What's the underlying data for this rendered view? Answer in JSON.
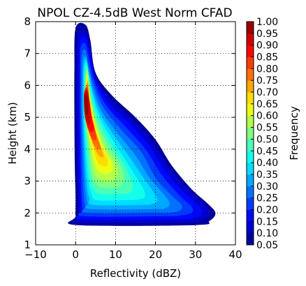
{
  "chart_data": {
    "type": "heatmap",
    "title": "NPOL CZ-4.5dB West Norm CFAD",
    "xlabel": "Reflectivity (dBZ)",
    "ylabel": "Height (km)",
    "xlim": [
      -10,
      40
    ],
    "ylim": [
      1,
      8
    ],
    "xticks": [
      -10,
      0,
      10,
      20,
      30,
      40
    ],
    "yticks": [
      1,
      2,
      3,
      4,
      5,
      6,
      7,
      8
    ],
    "grid": true,
    "colorbar": {
      "label": "Frequency",
      "min": 0.05,
      "max": 1.0,
      "ticks": [
        "0.05",
        "0.10",
        "0.15",
        "0.20",
        "0.25",
        "0.30",
        "0.35",
        "0.40",
        "0.45",
        "0.50",
        "0.55",
        "0.60",
        "0.65",
        "0.70",
        "0.75",
        "0.80",
        "0.85",
        "0.90",
        "0.95",
        "1.00"
      ],
      "colormap": "jet"
    },
    "contour_envelopes": [
      {
        "level": 0.05,
        "left": [
          [
            0,
            7.8
          ],
          [
            -0.3,
            6.5
          ],
          [
            -0.3,
            5
          ],
          [
            -0.2,
            3.5
          ],
          [
            0,
            2.5
          ],
          [
            0,
            1.9
          ],
          [
            0.4,
            1.62
          ]
        ],
        "right": [
          [
            2.5,
            7.9
          ],
          [
            3.7,
            7.4
          ],
          [
            5,
            6.4
          ],
          [
            9,
            5.7
          ],
          [
            15,
            5
          ],
          [
            20,
            4.3
          ],
          [
            24,
            3.5
          ],
          [
            29,
            2.75
          ],
          [
            33,
            2.3
          ],
          [
            35,
            2.0
          ],
          [
            33.5,
            1.75
          ],
          [
            30,
            1.62
          ]
        ]
      },
      {
        "level": 0.1,
        "left": [
          [
            0.6,
            7.6
          ],
          [
            0.3,
            6.5
          ],
          [
            0.3,
            5
          ],
          [
            0.4,
            3.5
          ],
          [
            0.6,
            2.5
          ],
          [
            0.8,
            1.9
          ],
          [
            1.2,
            1.7
          ]
        ],
        "right": [
          [
            2.5,
            7.7
          ],
          [
            3.6,
            7.2
          ],
          [
            5,
            6.3
          ],
          [
            8.5,
            5.6
          ],
          [
            14.5,
            4.9
          ],
          [
            19.5,
            4.2
          ],
          [
            23.5,
            3.4
          ],
          [
            28.5,
            2.7
          ],
          [
            32.5,
            2.25
          ],
          [
            33.5,
            1.95
          ],
          [
            31,
            1.75
          ],
          [
            28,
            1.7
          ]
        ]
      },
      {
        "level": 0.15,
        "left": [
          [
            1.0,
            7.4
          ],
          [
            0.8,
            6.5
          ],
          [
            0.8,
            5
          ],
          [
            0.9,
            3.5
          ],
          [
            1.1,
            2.5
          ],
          [
            1.3,
            2.0
          ],
          [
            1.7,
            1.8
          ]
        ],
        "right": [
          [
            2.5,
            7.5
          ],
          [
            3.5,
            7.0
          ],
          [
            5,
            6.2
          ],
          [
            8,
            5.5
          ],
          [
            13.5,
            4.8
          ],
          [
            18.5,
            4.1
          ],
          [
            22.5,
            3.3
          ],
          [
            27.5,
            2.6
          ],
          [
            31,
            2.2
          ],
          [
            31.5,
            1.95
          ],
          [
            29,
            1.82
          ],
          [
            26,
            1.8
          ]
        ]
      },
      {
        "level": 0.2,
        "left": [
          [
            1.3,
            7.2
          ],
          [
            1.1,
            6.5
          ],
          [
            1.1,
            5
          ],
          [
            1.3,
            3.5
          ],
          [
            1.5,
            2.5
          ],
          [
            1.8,
            2.1
          ],
          [
            2.3,
            1.9
          ]
        ],
        "right": [
          [
            2.5,
            7.3
          ],
          [
            3.4,
            6.8
          ],
          [
            4.8,
            6.1
          ],
          [
            7.5,
            5.4
          ],
          [
            12.5,
            4.7
          ],
          [
            17.5,
            4.0
          ],
          [
            21.5,
            3.2
          ],
          [
            26,
            2.55
          ],
          [
            29,
            2.2
          ],
          [
            29,
            2.0
          ],
          [
            26,
            1.92
          ],
          [
            23,
            1.9
          ]
        ]
      },
      {
        "level": 0.25,
        "left": [
          [
            1.6,
            7.0
          ],
          [
            1.4,
            6.4
          ],
          [
            1.4,
            5
          ],
          [
            1.7,
            3.5
          ],
          [
            2.0,
            2.6
          ],
          [
            2.4,
            2.2
          ],
          [
            3.0,
            2.0
          ]
        ],
        "right": [
          [
            2.5,
            7.1
          ],
          [
            3.3,
            6.6
          ],
          [
            4.6,
            6.0
          ],
          [
            7,
            5.3
          ],
          [
            11.5,
            4.6
          ],
          [
            16.5,
            3.9
          ],
          [
            20,
            3.1
          ],
          [
            24,
            2.55
          ],
          [
            26.5,
            2.25
          ],
          [
            26,
            2.07
          ],
          [
            23,
            2.0
          ],
          [
            20,
            2.0
          ]
        ]
      },
      {
        "level": 0.3,
        "left": [
          [
            1.9,
            6.8
          ],
          [
            1.7,
            6.3
          ],
          [
            1.7,
            5
          ],
          [
            2.1,
            3.5
          ],
          [
            2.5,
            2.7
          ],
          [
            3.0,
            2.3
          ],
          [
            3.8,
            2.12
          ]
        ],
        "right": [
          [
            2.6,
            6.9
          ],
          [
            3.3,
            6.5
          ],
          [
            4.4,
            5.9
          ],
          [
            6.5,
            5.2
          ],
          [
            10.5,
            4.5
          ],
          [
            15,
            3.8
          ],
          [
            18.5,
            3.1
          ],
          [
            22,
            2.6
          ],
          [
            23.5,
            2.3
          ],
          [
            22.5,
            2.15
          ],
          [
            19.5,
            2.12
          ]
        ]
      },
      {
        "level": 0.35,
        "left": [
          [
            2.1,
            6.7
          ],
          [
            1.9,
            6.2
          ],
          [
            1.9,
            5
          ],
          [
            2.4,
            3.6
          ],
          [
            2.9,
            2.8
          ],
          [
            3.5,
            2.45
          ],
          [
            4.5,
            2.25
          ]
        ],
        "right": [
          [
            2.7,
            6.8
          ],
          [
            3.3,
            6.4
          ],
          [
            4.3,
            5.8
          ],
          [
            6.2,
            5.1
          ],
          [
            9.8,
            4.4
          ],
          [
            13.8,
            3.7
          ],
          [
            17,
            3.1
          ],
          [
            19.5,
            2.65
          ],
          [
            20.5,
            2.4
          ],
          [
            19,
            2.27
          ],
          [
            16,
            2.25
          ]
        ]
      },
      {
        "level": 0.4,
        "left": [
          [
            2.3,
            6.6
          ],
          [
            2.1,
            6.1
          ],
          [
            2.1,
            5
          ],
          [
            2.7,
            3.7
          ],
          [
            3.3,
            2.9
          ],
          [
            4,
            2.6
          ],
          [
            5.3,
            2.4
          ]
        ],
        "right": [
          [
            2.8,
            6.7
          ],
          [
            3.3,
            6.3
          ],
          [
            4.2,
            5.7
          ],
          [
            6,
            5.0
          ],
          [
            9.2,
            4.3
          ],
          [
            12.8,
            3.6
          ],
          [
            15.3,
            3.1
          ],
          [
            17,
            2.75
          ],
          [
            17.3,
            2.5
          ],
          [
            15.5,
            2.42
          ],
          [
            12.5,
            2.4
          ]
        ]
      },
      {
        "level": 0.45,
        "left": [
          [
            2.5,
            6.5
          ],
          [
            2.3,
            6.0
          ],
          [
            2.3,
            5
          ],
          [
            3.0,
            3.8
          ],
          [
            3.7,
            3.0
          ],
          [
            4.6,
            2.75
          ],
          [
            6,
            2.6
          ]
        ],
        "right": [
          [
            2.9,
            6.6
          ],
          [
            3.3,
            6.2
          ],
          [
            4.1,
            5.6
          ],
          [
            5.8,
            4.9
          ],
          [
            8.7,
            4.2
          ],
          [
            11.8,
            3.6
          ],
          [
            13.5,
            3.15
          ],
          [
            14.3,
            2.85
          ],
          [
            13.8,
            2.65
          ],
          [
            11.5,
            2.6
          ]
        ]
      },
      {
        "level": 0.5,
        "left": [
          [
            2.6,
            6.4
          ],
          [
            2.4,
            5.9
          ],
          [
            2.5,
            5
          ],
          [
            3.3,
            3.9
          ],
          [
            4.2,
            3.1
          ],
          [
            5.3,
            2.9
          ],
          [
            6.6,
            2.8
          ]
        ],
        "right": [
          [
            3.0,
            6.5
          ],
          [
            3.3,
            6.1
          ],
          [
            4.0,
            5.5
          ],
          [
            5.6,
            4.8
          ],
          [
            8.2,
            4.1
          ],
          [
            10.8,
            3.6
          ],
          [
            12,
            3.2
          ],
          [
            11.8,
            2.95
          ],
          [
            10.2,
            2.8
          ]
        ]
      },
      {
        "level": 0.55,
        "left": [
          [
            2.7,
            6.3
          ],
          [
            2.5,
            5.8
          ],
          [
            2.7,
            5
          ],
          [
            3.6,
            4.0
          ],
          [
            4.7,
            3.25
          ],
          [
            6.0,
            3.05
          ],
          [
            7.3,
            3.0
          ]
        ],
        "right": [
          [
            3.1,
            6.4
          ],
          [
            3.3,
            6.0
          ],
          [
            4.0,
            5.4
          ],
          [
            5.4,
            4.7
          ],
          [
            7.7,
            4.0
          ],
          [
            9.8,
            3.6
          ],
          [
            10.6,
            3.3
          ],
          [
            10.0,
            3.08
          ],
          [
            8.8,
            3.0
          ]
        ]
      },
      {
        "level": 0.6,
        "left": [
          [
            2.7,
            6.2
          ],
          [
            2.5,
            5.7
          ],
          [
            2.8,
            5
          ],
          [
            3.9,
            4.1
          ],
          [
            5.2,
            3.4
          ],
          [
            6.6,
            3.25
          ],
          [
            7.5,
            3.22
          ]
        ],
        "right": [
          [
            3.1,
            6.3
          ],
          [
            3.3,
            5.9
          ],
          [
            4.0,
            5.3
          ],
          [
            5.3,
            4.6
          ],
          [
            7.3,
            3.95
          ],
          [
            9.0,
            3.6
          ],
          [
            9.3,
            3.4
          ],
          [
            8.5,
            3.25
          ]
        ]
      },
      {
        "level": 0.65,
        "left": [
          [
            2.7,
            6.1
          ],
          [
            2.5,
            5.6
          ],
          [
            2.9,
            5.0
          ],
          [
            4.1,
            4.2
          ],
          [
            5.5,
            3.6
          ],
          [
            6.8,
            3.48
          ],
          [
            7.5,
            3.45
          ]
        ],
        "right": [
          [
            3.1,
            6.2
          ],
          [
            3.3,
            5.8
          ],
          [
            4.0,
            5.2
          ],
          [
            5.2,
            4.5
          ],
          [
            6.9,
            3.95
          ],
          [
            8.0,
            3.7
          ],
          [
            8.0,
            3.52
          ]
        ]
      },
      {
        "level": 0.7,
        "left": [
          [
            2.7,
            6.0
          ],
          [
            2.5,
            5.5
          ],
          [
            2.9,
            4.9
          ],
          [
            4.0,
            4.3
          ],
          [
            5.5,
            3.85
          ],
          [
            6.7,
            3.75
          ]
        ],
        "right": [
          [
            3.1,
            6.1
          ],
          [
            3.3,
            5.7
          ],
          [
            4.0,
            5.1
          ],
          [
            5.1,
            4.5
          ],
          [
            6.5,
            4.0
          ],
          [
            7.0,
            3.8
          ]
        ]
      },
      {
        "level": 0.75,
        "left": [
          [
            2.6,
            5.95
          ],
          [
            2.4,
            5.5
          ],
          [
            2.8,
            4.9
          ],
          [
            3.7,
            4.4
          ],
          [
            5.0,
            4.05
          ],
          [
            6.2,
            4.0
          ]
        ],
        "right": [
          [
            3.1,
            6.0
          ],
          [
            3.4,
            5.6
          ],
          [
            4.0,
            5.0
          ],
          [
            5.0,
            4.55
          ],
          [
            6.1,
            4.15
          ],
          [
            6.3,
            4.02
          ]
        ]
      },
      {
        "level": 0.8,
        "left": [
          [
            2.4,
            5.9
          ],
          [
            2.2,
            5.5
          ],
          [
            2.6,
            4.9
          ],
          [
            3.3,
            4.55
          ],
          [
            4.3,
            4.3
          ]
        ],
        "right": [
          [
            3.0,
            5.9
          ],
          [
            3.5,
            5.5
          ],
          [
            4.0,
            5.0
          ],
          [
            4.8,
            4.65
          ],
          [
            5.2,
            4.32
          ]
        ]
      },
      {
        "level": 0.85,
        "left": [
          [
            2.3,
            5.85
          ],
          [
            2.1,
            5.5
          ],
          [
            2.4,
            5.0
          ],
          [
            3.0,
            4.7
          ],
          [
            3.8,
            4.55
          ]
        ],
        "right": [
          [
            3.0,
            5.85
          ],
          [
            3.5,
            5.5
          ],
          [
            4.0,
            5.05
          ],
          [
            4.5,
            4.75
          ],
          [
            4.4,
            4.56
          ]
        ]
      },
      {
        "level": 0.9,
        "left": [
          [
            2.2,
            5.8
          ],
          [
            2.1,
            5.5
          ],
          [
            2.3,
            5.05
          ],
          [
            3.0,
            4.8
          ]
        ],
        "right": [
          [
            3.0,
            5.8
          ],
          [
            3.4,
            5.5
          ],
          [
            3.8,
            5.1
          ],
          [
            3.6,
            4.82
          ]
        ]
      },
      {
        "level": 0.95,
        "left": [
          [
            2.3,
            5.7
          ],
          [
            2.2,
            5.45
          ],
          [
            2.5,
            5.1
          ]
        ],
        "right": [
          [
            2.9,
            5.7
          ],
          [
            3.2,
            5.45
          ],
          [
            3.1,
            5.12
          ]
        ]
      }
    ]
  }
}
